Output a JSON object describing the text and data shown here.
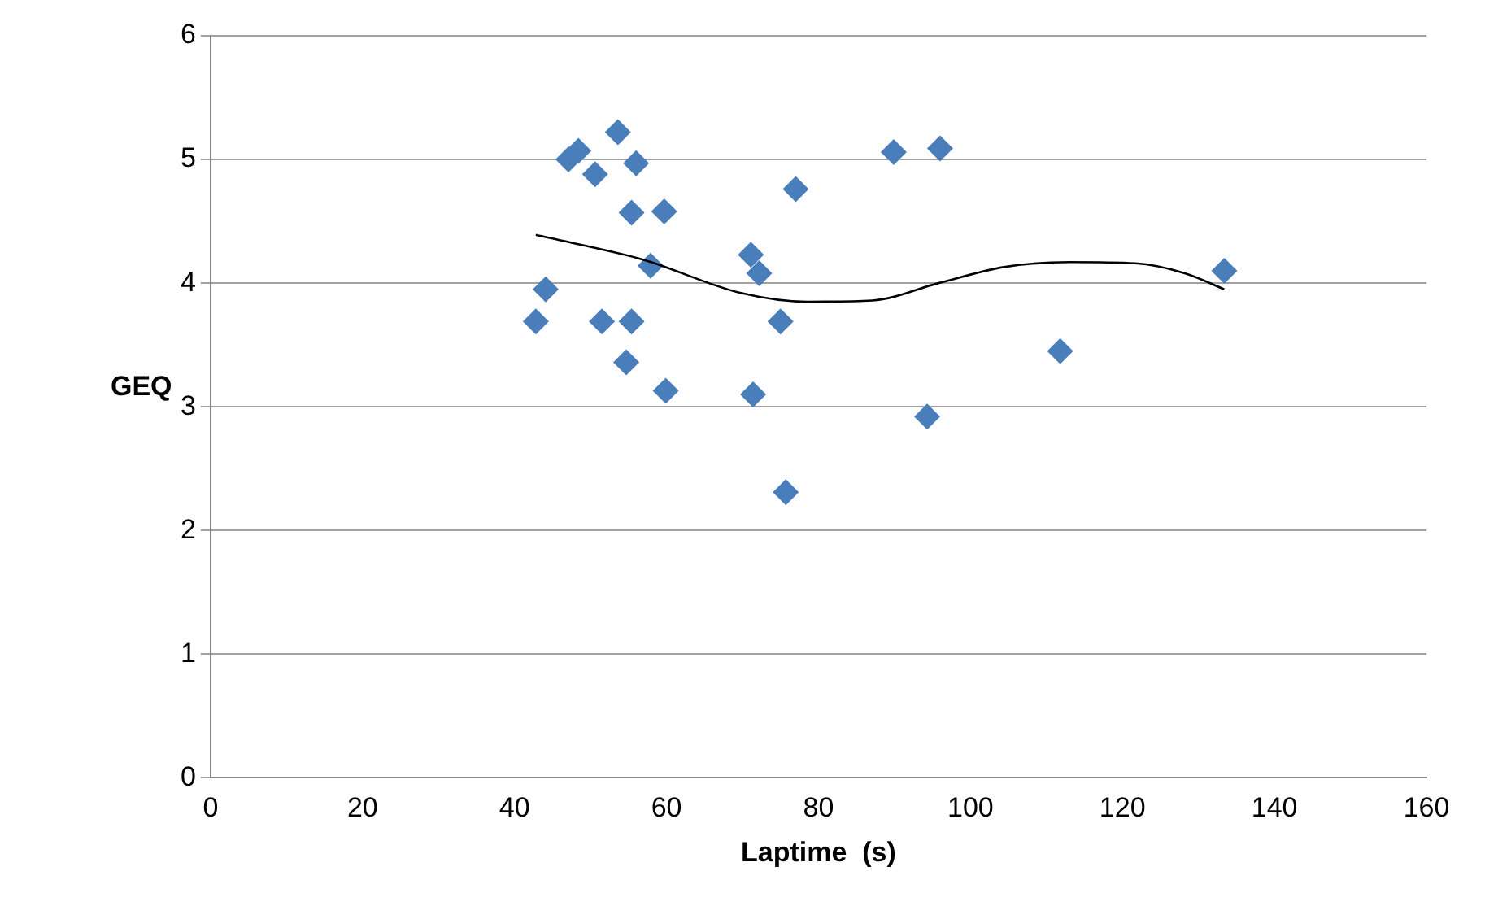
{
  "chart_data": {
    "type": "scatter",
    "xlabel": "Laptime  (s)",
    "ylabel": "GEQ",
    "xlim": [
      0,
      160
    ],
    "xticks": [
      0,
      20,
      40,
      60,
      80,
      100,
      120,
      140,
      160
    ],
    "ylim": [
      0,
      6
    ],
    "yticks": [
      0,
      1,
      2,
      3,
      4,
      5,
      6
    ],
    "grid": "y",
    "legend": false,
    "marker": "diamond",
    "series": [
      {
        "type": "scatter",
        "color": "#4a7ebb",
        "x": [
          42.8,
          44.1,
          47.1,
          48.4,
          50.6,
          51.5,
          53.6,
          54.7,
          55.4,
          55.4,
          56.0,
          57.9,
          59.7,
          59.9,
          71.1,
          71.4,
          72.2,
          75.0,
          75.7,
          77.0,
          89.9,
          96.0,
          94.3,
          111.8,
          133.4
        ],
        "values": [
          3.69,
          3.95,
          5.0,
          5.07,
          4.88,
          3.69,
          5.22,
          3.36,
          4.57,
          3.69,
          4.97,
          4.14,
          4.58,
          3.13,
          4.23,
          3.1,
          4.08,
          3.69,
          2.31,
          4.76,
          5.06,
          5.09,
          2.92,
          3.45,
          4.1
        ]
      },
      {
        "type": "line",
        "color": "#000000",
        "marker": "none",
        "x": [
          42.8,
          56.9,
          69.8,
          78.5,
          87.1,
          95.8,
          104.4,
          113.1,
          121.7,
          128.2,
          133.4
        ],
        "values": [
          4.39,
          4.19,
          3.92,
          3.85,
          3.86,
          4.0,
          4.13,
          4.17,
          4.16,
          4.08,
          3.95
        ]
      }
    ]
  }
}
